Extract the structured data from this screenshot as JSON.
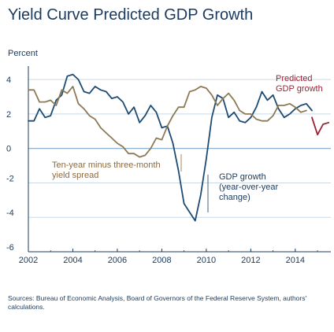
{
  "chart_data": {
    "type": "line",
    "title": "Yield Curve Predicted GDP Growth",
    "ylabel": "Percent",
    "xlabel": "",
    "xlim": [
      2002,
      2015.6
    ],
    "ylim": [
      -6,
      4.6
    ],
    "xticks": [
      "2002",
      "2004",
      "2006",
      "2008",
      "2010",
      "2012",
      "2014"
    ],
    "xtick_values": [
      2002,
      2004,
      2006,
      2008,
      2010,
      2012,
      2014
    ],
    "yticks": [
      "4",
      "2",
      "0",
      "-2",
      "-4",
      "-6"
    ],
    "ytick_values": [
      4,
      2,
      0,
      -2,
      -4,
      -6
    ],
    "grid": "horizontal",
    "series": [
      {
        "name": "GDP growth (year-over-year change)",
        "color": "#1d4b73",
        "x": [
          2002,
          2002.25,
          2002.5,
          2002.75,
          2003,
          2003.25,
          2003.5,
          2003.75,
          2004,
          2004.25,
          2004.5,
          2004.75,
          2005,
          2005.25,
          2005.5,
          2005.75,
          2006,
          2006.25,
          2006.5,
          2006.75,
          2007,
          2007.25,
          2007.5,
          2007.75,
          2008,
          2008.25,
          2008.5,
          2008.75,
          2009,
          2009.25,
          2009.5,
          2009.75,
          2010,
          2010.25,
          2010.5,
          2010.75,
          2011,
          2011.25,
          2011.5,
          2011.75,
          2012,
          2012.25,
          2012.5,
          2012.75,
          2013,
          2013.25,
          2013.5,
          2013.75,
          2014,
          2014.25,
          2014.5,
          2014.75
        ],
        "y": [
          1.6,
          1.6,
          2.3,
          1.8,
          1.9,
          2.8,
          3.1,
          4.2,
          4.3,
          4.0,
          3.3,
          3.2,
          3.6,
          3.4,
          3.3,
          2.9,
          3.0,
          2.7,
          2.0,
          2.4,
          1.5,
          1.9,
          2.5,
          2.1,
          1.2,
          1.3,
          0.3,
          -1.3,
          -3.2,
          -3.7,
          -4.2,
          -2.7,
          -0.6,
          1.8,
          3.1,
          2.9,
          1.8,
          2.1,
          1.6,
          1.5,
          1.8,
          2.4,
          3.3,
          2.8,
          3.1,
          2.3,
          1.8,
          2.0,
          2.3,
          2.5,
          2.6,
          2.2
        ]
      },
      {
        "name": "Ten-year minus three-month yield spread",
        "color": "#8c7a55",
        "x": [
          2002,
          2002.25,
          2002.5,
          2002.75,
          2003,
          2003.25,
          2003.5,
          2003.75,
          2004,
          2004.25,
          2004.5,
          2004.75,
          2005,
          2005.25,
          2005.5,
          2005.75,
          2006,
          2006.25,
          2006.5,
          2006.75,
          2007,
          2007.25,
          2007.5,
          2007.75,
          2008,
          2008.25,
          2008.5,
          2008.75,
          2009,
          2009.25,
          2009.5,
          2009.75,
          2010,
          2010.25,
          2010.5,
          2010.75,
          2011,
          2011.25,
          2011.5,
          2011.75,
          2012,
          2012.25,
          2012.5,
          2012.75,
          2013,
          2013.25,
          2013.5,
          2013.75,
          2014,
          2014.25,
          2014.5
        ],
        "y": [
          3.4,
          3.4,
          2.7,
          2.7,
          2.8,
          2.5,
          3.4,
          3.2,
          3.6,
          2.6,
          2.3,
          1.9,
          1.7,
          1.2,
          0.9,
          0.6,
          0.3,
          0.1,
          -0.3,
          -0.3,
          -0.5,
          -0.4,
          0.0,
          0.6,
          0.5,
          1.3,
          1.9,
          2.4,
          2.4,
          3.3,
          3.4,
          3.6,
          3.5,
          3.1,
          2.5,
          2.9,
          3.2,
          2.8,
          2.2,
          2.0,
          2.0,
          1.7,
          1.6,
          1.6,
          1.9,
          2.5,
          2.5,
          2.6,
          2.4,
          2.1,
          2.2
        ]
      },
      {
        "name": "Predicted GDP growth",
        "color": "#9b2335",
        "x": [
          2014.75,
          2015,
          2015.25,
          2015.5
        ],
        "y": [
          1.8,
          0.8,
          1.4,
          1.5
        ]
      }
    ],
    "annotations": [
      {
        "lines": [
          "Predicted",
          "GDP growth"
        ],
        "color": "#9b2335"
      },
      {
        "lines": [
          "Ten-year minus three-month",
          "yield spread"
        ],
        "color": "#8c6a3c"
      },
      {
        "lines": [
          "GDP growth",
          "(year-over-year",
          "change)"
        ],
        "color": "#1b3a5c"
      }
    ]
  },
  "footer": "Sources: Bureau of Economic Analysis, Board of Governors of the Federal Reserve System, authors' calculations."
}
